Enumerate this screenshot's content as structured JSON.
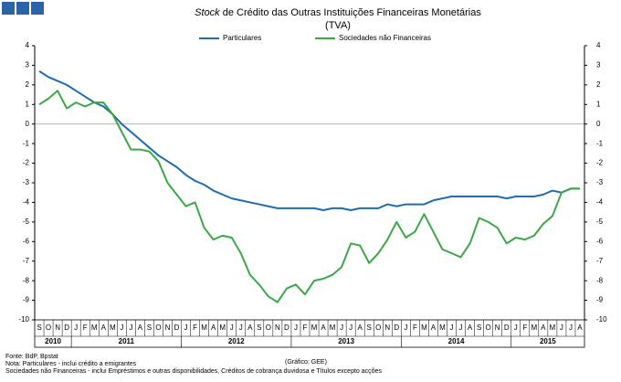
{
  "chart_data": {
    "type": "line",
    "title_italic": "Stock",
    "title": "de Crédito das Outras Instituições Financeiras Monetárias",
    "subtitle": "(TVA)",
    "categories": [
      "S",
      "O",
      "N",
      "D",
      "J",
      "F",
      "M",
      "A",
      "M",
      "J",
      "J",
      "A",
      "S",
      "O",
      "N",
      "D",
      "J",
      "F",
      "M",
      "A",
      "M",
      "J",
      "J",
      "A",
      "S",
      "O",
      "N",
      "D",
      "J",
      "F",
      "M",
      "A",
      "M",
      "J",
      "J",
      "A",
      "S",
      "O",
      "N",
      "D",
      "J",
      "F",
      "M",
      "A",
      "M",
      "J",
      "J",
      "A",
      "S",
      "O",
      "N",
      "D",
      "J",
      "F",
      "M",
      "A",
      "M",
      "J",
      "J",
      "A"
    ],
    "years": [
      "2010",
      "2011",
      "2012",
      "2013",
      "2014",
      "2015"
    ],
    "series": [
      {
        "name": "Particulares",
        "color": "#1f6cb0",
        "values": [
          2.7,
          2.4,
          2.2,
          2.0,
          1.7,
          1.4,
          1.1,
          0.9,
          0.5,
          0.0,
          -0.4,
          -0.8,
          -1.2,
          -1.6,
          -1.9,
          -2.2,
          -2.6,
          -2.9,
          -3.1,
          -3.4,
          -3.6,
          -3.8,
          -3.9,
          -4.0,
          -4.1,
          -4.2,
          -4.3,
          -4.3,
          -4.3,
          -4.3,
          -4.3,
          -4.4,
          -4.3,
          -4.3,
          -4.4,
          -4.3,
          -4.3,
          -4.3,
          -4.1,
          -4.2,
          -4.1,
          -4.1,
          -4.1,
          -3.9,
          -3.8,
          -3.7,
          -3.7,
          -3.7,
          -3.7,
          -3.7,
          -3.7,
          -3.8,
          -3.7,
          -3.7,
          -3.7,
          -3.6,
          -3.4,
          -3.5,
          -3.3,
          -3.3
        ]
      },
      {
        "name": "Sociedades não Financeiras",
        "color": "#3aa846",
        "values": [
          1.0,
          1.3,
          1.7,
          0.8,
          1.1,
          0.9,
          1.1,
          1.1,
          0.5,
          -0.4,
          -1.3,
          -1.3,
          -1.4,
          -1.9,
          -3.0,
          -3.6,
          -4.2,
          -4.0,
          -5.3,
          -5.9,
          -5.7,
          -5.8,
          -6.6,
          -7.7,
          -8.2,
          -8.8,
          -9.1,
          -8.4,
          -8.2,
          -8.7,
          -8.0,
          -7.9,
          -7.7,
          -7.3,
          -6.1,
          -6.2,
          -7.1,
          -6.6,
          -5.9,
          -5.0,
          -5.8,
          -5.5,
          -4.6,
          -5.5,
          -6.4,
          -6.6,
          -6.8,
          -6.1,
          -4.8,
          -5.0,
          -5.3,
          -6.1,
          -5.8,
          -5.9,
          -5.7,
          -5.1,
          -4.7,
          -3.5,
          -3.3,
          -3.3
        ]
      }
    ],
    "ylim": [
      -10,
      4
    ],
    "yticks": [
      -10,
      -9,
      -8,
      -7,
      -6,
      -5,
      -4,
      -3,
      -2,
      -1,
      0,
      1,
      2,
      3,
      4
    ],
    "y2lim": [
      -10,
      4
    ],
    "y2ticks": [
      -10,
      -9,
      -8,
      -7,
      -6,
      -5,
      -4,
      -3,
      -2,
      -1,
      0,
      1,
      2,
      3,
      4
    ],
    "source": "Fonte: BdP, Bpstat",
    "credit": "(Gráfico: GEE)",
    "notes": [
      "Nota: Particulares - inclui crédito a emigrantes",
      "Sociedades não Financeiras - inclui Empréstimos e outras disponibilidades, Créditos de cobrança duvidosa e Títulos excepto acções"
    ]
  }
}
